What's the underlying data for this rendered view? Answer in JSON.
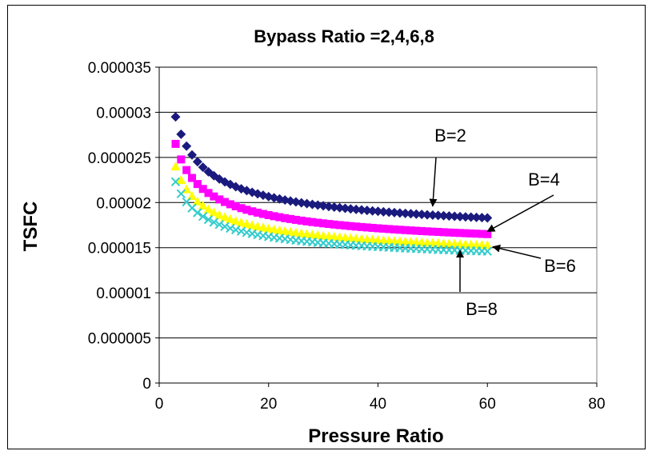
{
  "chart_data": {
    "type": "scatter",
    "title": "Bypass Ratio =2,4,6,8",
    "xlabel": "Pressure Ratio",
    "ylabel": "TSFC",
    "xlim": [
      0,
      80
    ],
    "ylim": [
      0,
      3.5e-05
    ],
    "x_ticks": [
      "0",
      "20",
      "40",
      "60",
      "80"
    ],
    "y_ticks": [
      "0",
      "0.000005",
      "0.00001",
      "0.000015",
      "0.00002",
      "0.000025",
      "0.00003",
      "0.000035"
    ],
    "grid": "horizontal",
    "x_start": 3,
    "x_end": 60,
    "x_step": 1,
    "series": [
      {
        "name": "B=2",
        "marker": "diamond",
        "color": "#1a1a7e",
        "y_start": 2.95e-05,
        "y_end": 1.83e-05
      },
      {
        "name": "B=4",
        "marker": "square",
        "color": "#ff00ff",
        "y_start": 2.65e-05,
        "y_end": 1.65e-05
      },
      {
        "name": "B=6",
        "marker": "triangle",
        "color": "#ffff00",
        "y_start": 2.4e-05,
        "y_end": 1.53e-05
      },
      {
        "name": "B=8",
        "marker": "x",
        "color": "#33cccc",
        "y_start": 2.23e-05,
        "y_end": 1.46e-05
      }
    ],
    "annotations": [
      {
        "text": "B=2",
        "arrow_to": [
          50,
          1.96e-05
        ]
      },
      {
        "text": "B=4",
        "arrow_to": [
          60,
          1.68e-05
        ]
      },
      {
        "text": "B=6",
        "arrow_to": [
          61,
          1.51e-05
        ]
      },
      {
        "text": "B=8",
        "arrow_to": [
          55,
          1.47e-05
        ]
      }
    ]
  }
}
